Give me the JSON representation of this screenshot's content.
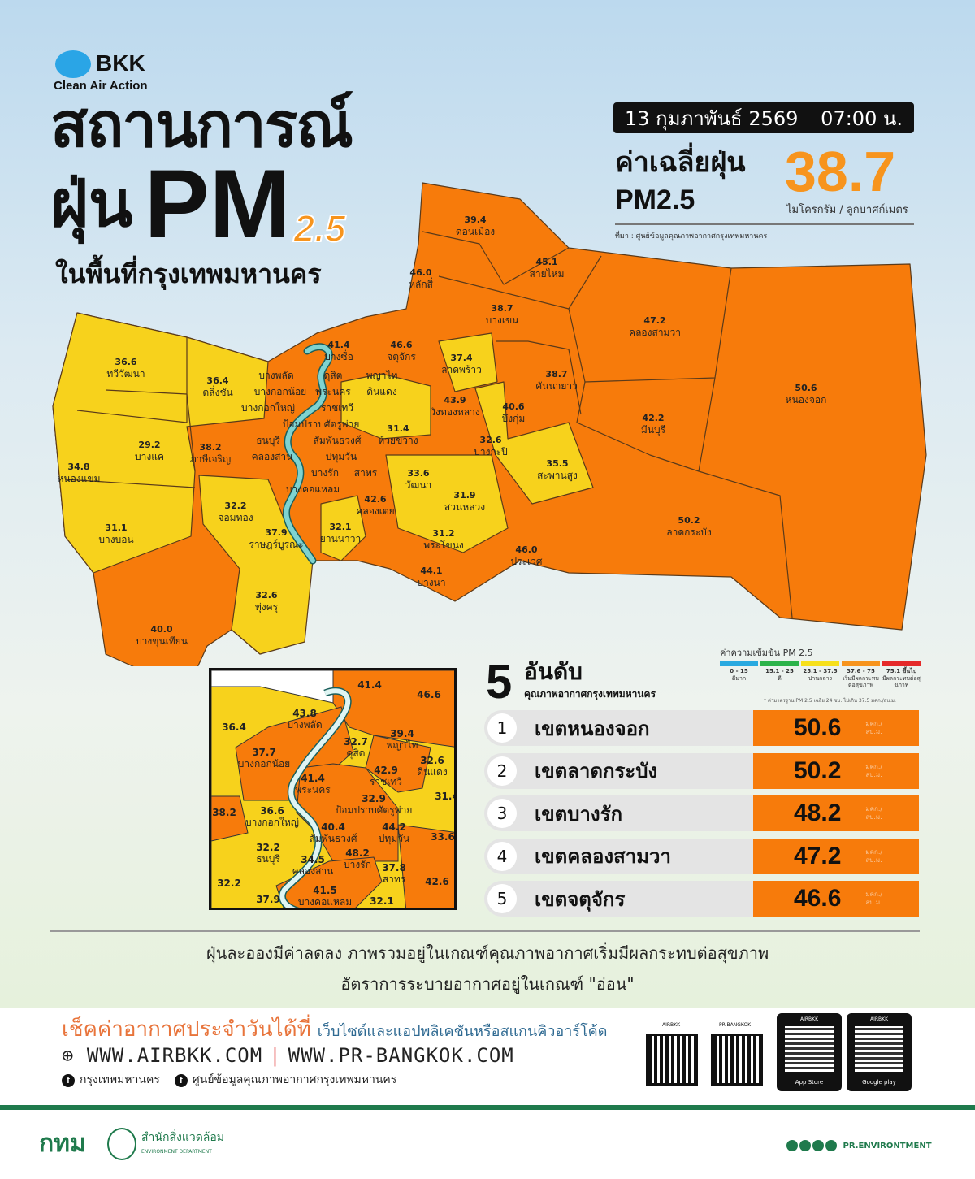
{
  "header": {
    "logo_name": "BKK",
    "logo_tagline": "Clean Air Action",
    "title_line1": "สถานการณ์",
    "title_dust": "ฝุ่น",
    "title_pm": "PM",
    "title_sub": "2.5",
    "title_line3": "ในพื้นที่กรุงเทพมหานคร"
  },
  "summary": {
    "date": "13 กุมภาพันธ์ 2569",
    "time": "07:00 น.",
    "avg_label1": "ค่าเฉลี่ยฝุ่น",
    "avg_label2": "PM2.5",
    "avg_value": "38.7",
    "unit": "ไมโครกรัม / ลูกบาศก์เมตร",
    "source": "ที่มา : ศูนย์ข้อมูลคุณภาพอากาศกรุงเทพมหานคร"
  },
  "colors": {
    "orange": "#f77b0b",
    "yellow": "#f7d21c",
    "accent": "#f7941d",
    "green": "#1f7a4c",
    "river": "#7fd3d0"
  },
  "map": {
    "districts": [
      {
        "name": "ดอนเมือง",
        "value": "39.4"
      },
      {
        "name": "หลักสี่",
        "value": "46.0"
      },
      {
        "name": "สายไหม",
        "value": "45.1"
      },
      {
        "name": "บางเขน",
        "value": "38.7"
      },
      {
        "name": "คลองสามวา",
        "value": "47.2"
      },
      {
        "name": "หนองจอก",
        "value": "50.6"
      },
      {
        "name": "บางซื่อ",
        "value": "41.4"
      },
      {
        "name": "จตุจักร",
        "value": "46.6"
      },
      {
        "name": "ลาดพร้าว",
        "value": "37.4"
      },
      {
        "name": "บึงกุ่ม",
        "value": "40.6"
      },
      {
        "name": "คันนายาว",
        "value": "38.7"
      },
      {
        "name": "มีนบุรี",
        "value": "42.2"
      },
      {
        "name": "ทวีวัฒนา",
        "value": "36.6"
      },
      {
        "name": "ตลิ่งชัน",
        "value": "36.4"
      },
      {
        "name": "หนองแขม",
        "value": "34.8"
      },
      {
        "name": "บางแค",
        "value": "29.2"
      },
      {
        "name": "ภาษีเจริญ",
        "value": "38.2"
      },
      {
        "name": "บางบอน",
        "value": "31.1"
      },
      {
        "name": "จอมทอง",
        "value": "32.2"
      },
      {
        "name": "ราษฎร์บูรณะ",
        "value": "37.9"
      },
      {
        "name": "ยานนาวา",
        "value": "32.1"
      },
      {
        "name": "ทุ่งครุ",
        "value": "32.6"
      },
      {
        "name": "บางขุนเทียน",
        "value": "40.0"
      },
      {
        "name": "วังทองหลาง",
        "value": "43.9"
      },
      {
        "name": "ห้วยขวาง",
        "value": "31.4"
      },
      {
        "name": "บางกะปิ",
        "value": "32.6"
      },
      {
        "name": "สะพานสูง",
        "value": "35.5"
      },
      {
        "name": "วัฒนา",
        "value": "33.6"
      },
      {
        "name": "สวนหลวง",
        "value": "31.9"
      },
      {
        "name": "คลองเตย",
        "value": "42.6"
      },
      {
        "name": "พระโขนง",
        "value": "31.2"
      },
      {
        "name": "บางนา",
        "value": "44.1"
      },
      {
        "name": "ประเวศ",
        "value": "46.0"
      },
      {
        "name": "ลาดกระบัง",
        "value": "50.2"
      }
    ],
    "inner_labels": [
      "บางพลัด",
      "บางกอกน้อย",
      "ดุสิต",
      "พญาไท",
      "ดินแดง",
      "พระนคร",
      "ราชเทวี",
      "ป้อมปราบศัตรูพ่าย",
      "สัมพันธวงศ์",
      "ปทุมวัน",
      "บางรัก",
      "บางกอกใหญ่",
      "ธนบุรี",
      "คลองสาน",
      "สาทร",
      "บางคอแหลม"
    ]
  },
  "inset": {
    "labels": [
      {
        "name": "",
        "value": "41.4"
      },
      {
        "name": "",
        "value": "46.6"
      },
      {
        "name": "",
        "value": "36.4"
      },
      {
        "name": "บางพลัด",
        "value": "43.8"
      },
      {
        "name": "ดุสิต",
        "value": "32.7"
      },
      {
        "name": "พญาไท",
        "value": "39.4"
      },
      {
        "name": "บางกอกน้อย",
        "value": "37.7"
      },
      {
        "name": "พระนคร",
        "value": "41.4"
      },
      {
        "name": "ดินแดง",
        "value": "32.6"
      },
      {
        "name": "ราชเทวี",
        "value": "42.9"
      },
      {
        "name": "ป้อมปราบศัตรูพ่าย",
        "value": "32.9"
      },
      {
        "name": "",
        "value": "31.4"
      },
      {
        "name": "",
        "value": "38.2"
      },
      {
        "name": "บางกอกใหญ่",
        "value": "36.6"
      },
      {
        "name": "สัมพันธวงศ์",
        "value": "40.4"
      },
      {
        "name": "ปทุมวัน",
        "value": "44.2"
      },
      {
        "name": "",
        "value": "33.6"
      },
      {
        "name": "ธนบุรี",
        "value": "32.2"
      },
      {
        "name": "คลองสาน",
        "value": "34.5"
      },
      {
        "name": "บางรัก",
        "value": "48.2"
      },
      {
        "name": "สาทร",
        "value": "37.8"
      },
      {
        "name": "",
        "value": "42.6"
      },
      {
        "name": "",
        "value": "32.2"
      },
      {
        "name": "บางคอแหลม",
        "value": "41.5"
      },
      {
        "name": "",
        "value": "37.9"
      },
      {
        "name": "",
        "value": "32.1"
      }
    ]
  },
  "ranking": {
    "big_number": "5",
    "title": "อันดับ",
    "subtitle": "คุณภาพอากาศกรุงเทพมหานคร",
    "unit_line1": "มคก./",
    "unit_line2": "ลบ.ม.",
    "items": [
      {
        "rank": "1",
        "name": "เขตหนองจอก",
        "value": "50.6"
      },
      {
        "rank": "2",
        "name": "เขตลาดกระบัง",
        "value": "50.2"
      },
      {
        "rank": "3",
        "name": "เขตบางรัก",
        "value": "48.2"
      },
      {
        "rank": "4",
        "name": "เขตคลองสามวา",
        "value": "47.2"
      },
      {
        "rank": "5",
        "name": "เขตจตุจักร",
        "value": "46.6"
      }
    ]
  },
  "legend": {
    "title": "ค่าความเข้มข้น PM 2.5",
    "note": "* ค่ามาตรฐาน PM 2.5 เฉลี่ย 24 ชม. ไม่เกิน 37.5 มคก./ลบ.ม.",
    "levels": [
      {
        "range": "0 - 15",
        "label": "ดีมาก",
        "color": "#29a9e0"
      },
      {
        "range": "15.1 - 25",
        "label": "ดี",
        "color": "#2cb34a"
      },
      {
        "range": "25.1 - 37.5",
        "label": "ปานกลาง",
        "color": "#f7e01c"
      },
      {
        "range": "37.6 - 75",
        "label": "เริ่มมีผลกระทบต่อสุขภาพ",
        "color": "#f7941d"
      },
      {
        "range": "75.1 ขึ้นไป",
        "label": "มีผลกระทบต่อสุขภาพ",
        "color": "#e52a2a"
      }
    ]
  },
  "message": {
    "line1": "ฝุ่นละอองมีค่าลดลง ภาพรวมอยู่ในเกณฑ์คุณภาพอากาศเริ่มมีผลกระทบต่อสุขภาพ",
    "line2": "อัตราการระบายอากาศอยู่ในเกณฑ์ \"อ่อน\""
  },
  "footer": {
    "check_label": "เช็คค่าอากาศประจำวันได้ที่",
    "check_sub": "เว็บไซต์และแอปพลิเคชันหรือสแกนคิวอาร์โค้ด",
    "url1": "WWW.AIRBKK.COM",
    "url_sep": "|",
    "url2": "WWW.PR-BANGKOK.COM",
    "fb1": "กรุงเทพมหานคร",
    "fb2": "ศูนย์ข้อมูลคุณภาพอากาศกรุงเทพมหานคร",
    "qr1_label": "AIRBKK",
    "qr2_label": "PR-BANGKOK",
    "store1_label": "AIRBKK",
    "store1": "App Store",
    "store2_label": "AIRBKK",
    "store2": "Google play",
    "org_abbr": "กทม",
    "dept": "สำนักสิ่งแวดล้อม",
    "dept_en": "ENVIRONMENT DEPARTMENT",
    "social": "PR.ENVIRONTMENT"
  }
}
